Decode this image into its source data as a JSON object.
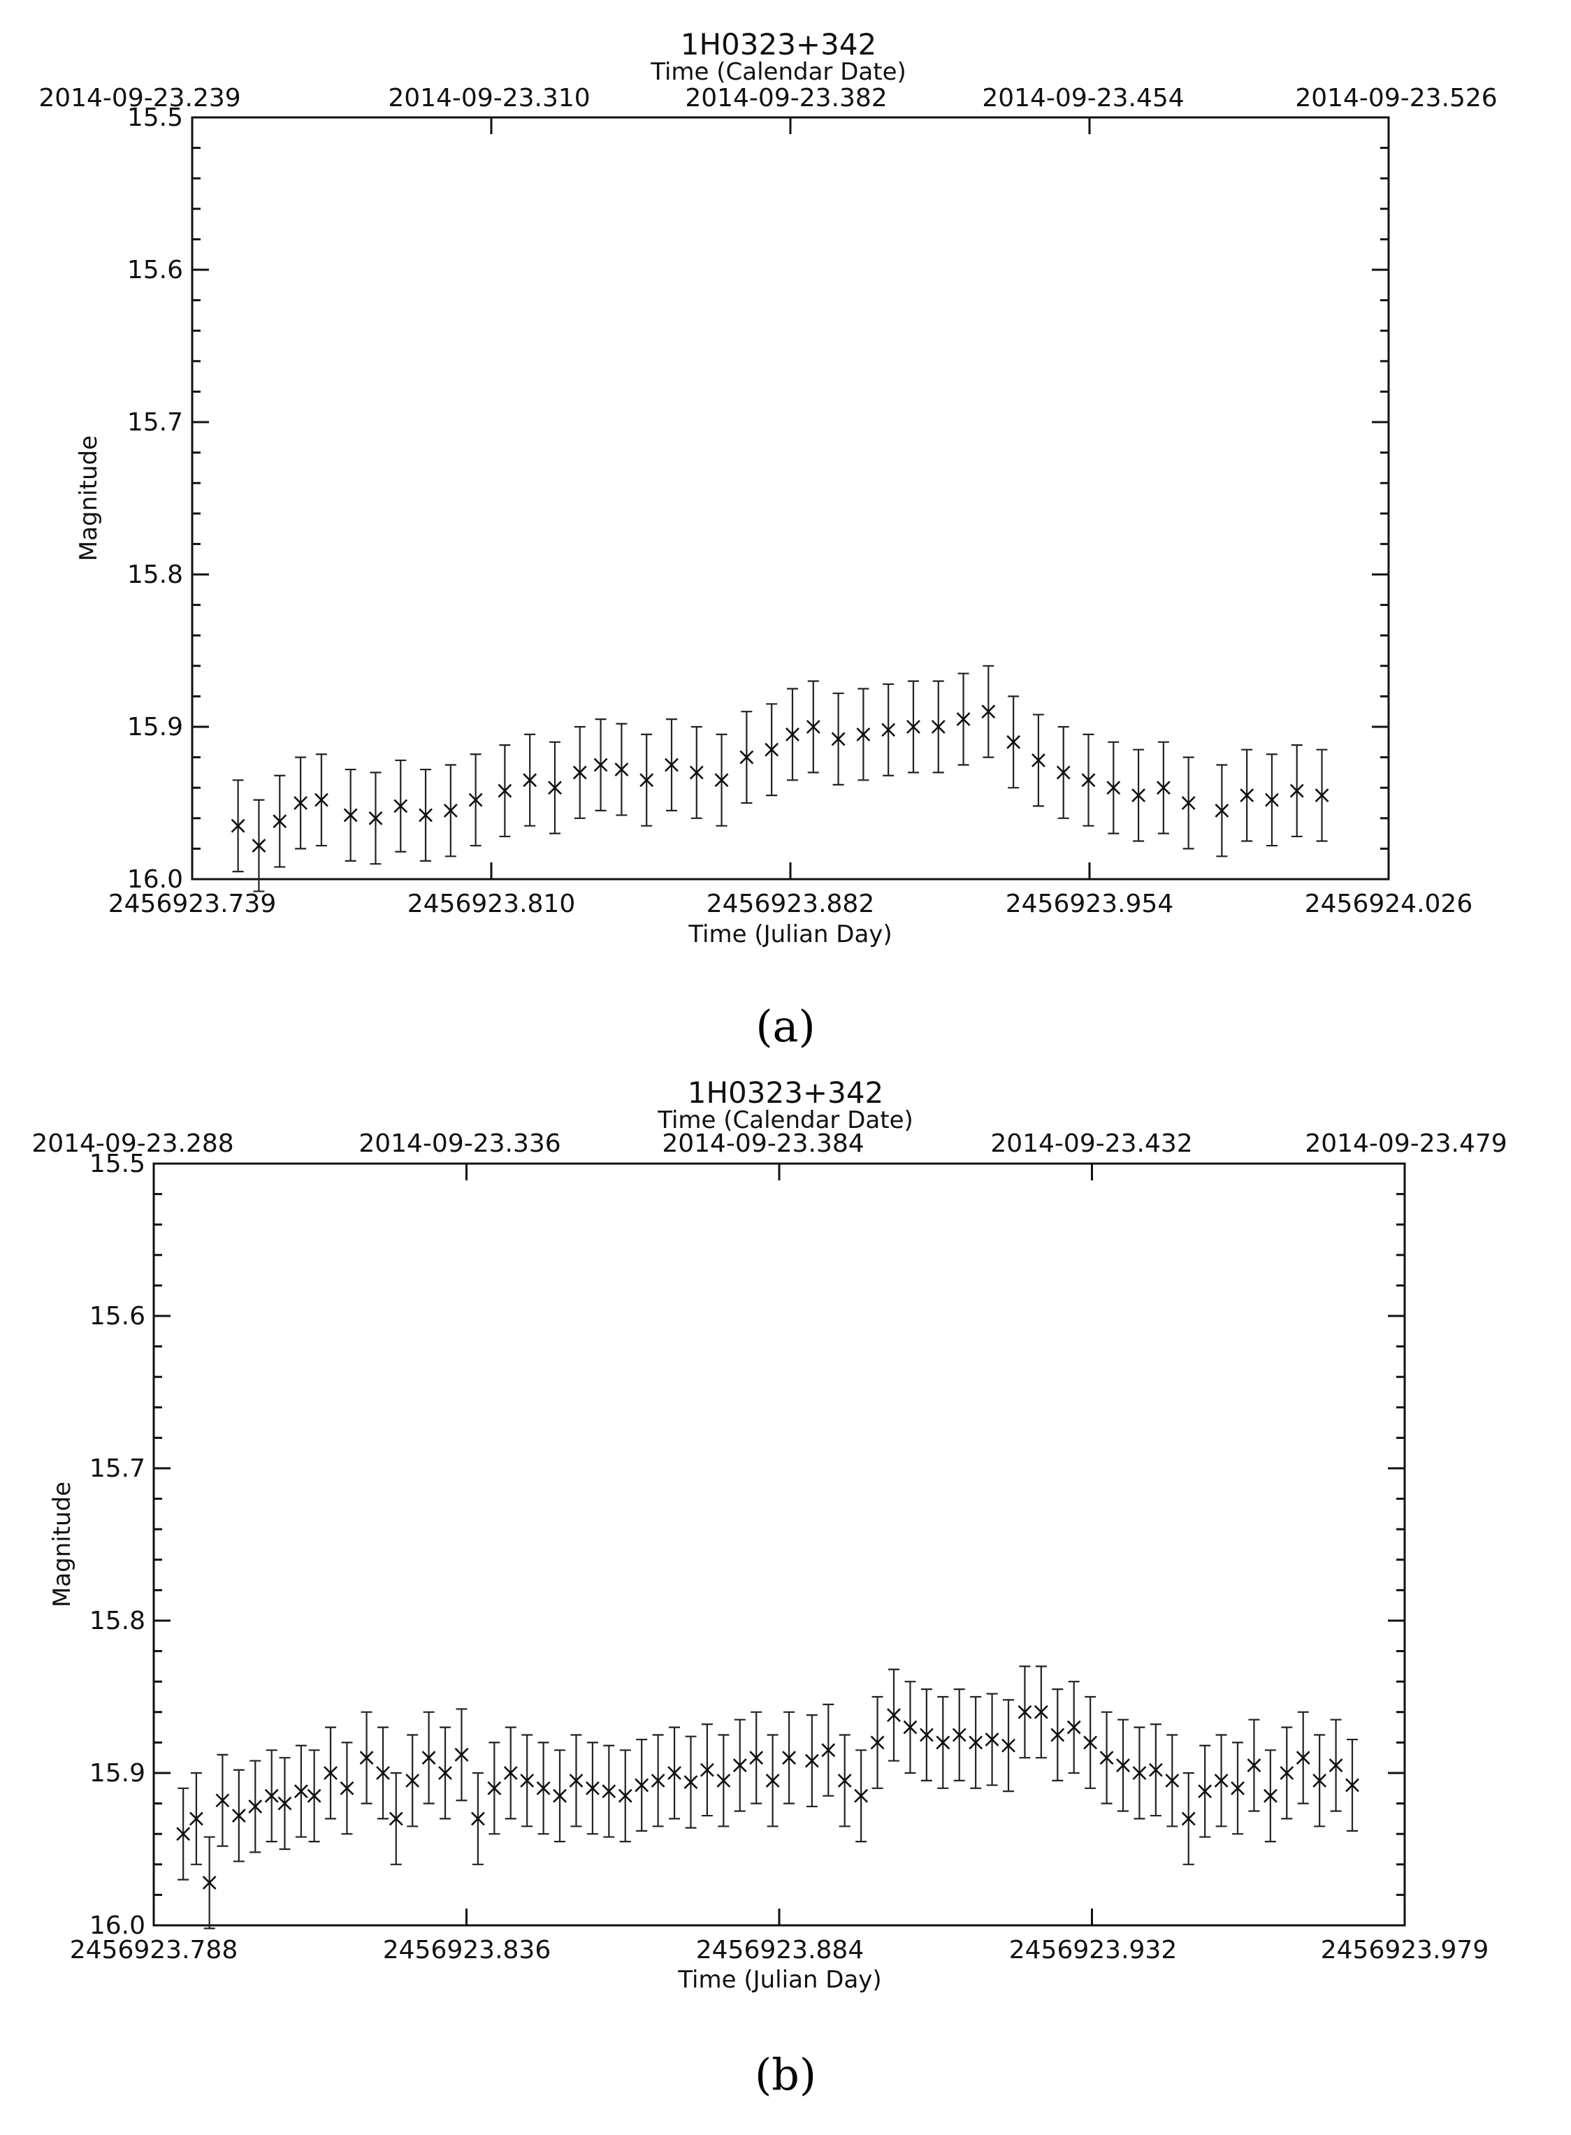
{
  "panels": [
    {
      "caption": "(a)",
      "title": "1H0323+342",
      "top_axis_label": "Time (Calendar Date)",
      "top_tick_labels": [
        "2014-09-23.239",
        "2014-09-23.310",
        "2014-09-23.382",
        "2014-09-23.454",
        "2014-09-23.526"
      ],
      "bottom_axis_label": "Time (Julian Day)",
      "bottom_tick_labels": [
        "2456923.739",
        "2456923.810",
        "2456923.882",
        "2456923.954",
        "2456924.026"
      ],
      "ylabel": "Magnitude",
      "y_tick_labels": [
        "15.5",
        "15.6",
        "15.7",
        "15.8",
        "15.9",
        "16.0"
      ]
    },
    {
      "caption": "(b)",
      "title": "1H0323+342",
      "top_axis_label": "Time (Calendar Date)",
      "top_tick_labels": [
        "2014-09-23.288",
        "2014-09-23.336",
        "2014-09-23.384",
        "2014-09-23.432",
        "2014-09-23.479"
      ],
      "bottom_axis_label": "Time (Julian Day)",
      "bottom_tick_labels": [
        "2456923.788",
        "2456923.836",
        "2456923.884",
        "2456923.932",
        "2456923.979"
      ],
      "ylabel": "Magnitude",
      "y_tick_labels": [
        "15.5",
        "15.6",
        "15.7",
        "15.8",
        "15.9",
        "16.0"
      ]
    }
  ],
  "chart_data": [
    {
      "type": "scatter",
      "title": "1H0323+342",
      "xlabel": "Time (Julian Day)",
      "x2label": "Time (Calendar Date)",
      "ylabel": "Magnitude",
      "xlim": [
        2456923.739,
        2456924.026
      ],
      "ylim": [
        15.5,
        16.0
      ],
      "y_inverted": true,
      "marker": "x",
      "error_bars": true,
      "x": [
        2456923.75,
        2456923.755,
        2456923.76,
        2456923.765,
        2456923.77,
        2456923.777,
        2456923.783,
        2456923.789,
        2456923.795,
        2456923.801,
        2456923.807,
        2456923.814,
        2456923.82,
        2456923.826,
        2456923.832,
        2456923.837,
        2456923.842,
        2456923.848,
        2456923.854,
        2456923.86,
        2456923.866,
        2456923.872,
        2456923.878,
        2456923.883,
        2456923.888,
        2456923.894,
        2456923.9,
        2456923.906,
        2456923.912,
        2456923.918,
        2456923.924,
        2456923.93,
        2456923.936,
        2456923.942,
        2456923.948,
        2456923.954,
        2456923.96,
        2456923.966,
        2456923.972,
        2456923.978,
        2456923.986,
        2456923.992,
        2456923.998,
        2456924.004,
        2456924.01
      ],
      "y": [
        15.965,
        15.978,
        15.962,
        15.95,
        15.948,
        15.958,
        15.96,
        15.952,
        15.958,
        15.955,
        15.948,
        15.942,
        15.935,
        15.94,
        15.93,
        15.925,
        15.928,
        15.935,
        15.925,
        15.93,
        15.935,
        15.92,
        15.915,
        15.905,
        15.9,
        15.908,
        15.905,
        15.902,
        15.9,
        15.9,
        15.895,
        15.89,
        15.91,
        15.922,
        15.93,
        15.935,
        15.94,
        15.945,
        15.94,
        15.95,
        15.955,
        15.945,
        15.948,
        15.942,
        15.945
      ],
      "yerr": [
        0.03,
        0.03,
        0.03,
        0.03,
        0.03,
        0.03,
        0.03,
        0.03,
        0.03,
        0.03,
        0.03,
        0.03,
        0.03,
        0.03,
        0.03,
        0.03,
        0.03,
        0.03,
        0.03,
        0.03,
        0.03,
        0.03,
        0.03,
        0.03,
        0.03,
        0.03,
        0.03,
        0.03,
        0.03,
        0.03,
        0.03,
        0.03,
        0.03,
        0.03,
        0.03,
        0.03,
        0.03,
        0.03,
        0.03,
        0.03,
        0.03,
        0.03,
        0.03,
        0.03,
        0.03
      ]
    },
    {
      "type": "scatter",
      "title": "1H0323+342",
      "xlabel": "Time (Julian Day)",
      "x2label": "Time (Calendar Date)",
      "ylabel": "Magnitude",
      "xlim": [
        2456923.788,
        2456923.979
      ],
      "ylim": [
        15.5,
        16.0
      ],
      "y_inverted": true,
      "marker": "x",
      "error_bars": true,
      "x": [
        2456923.7925,
        2456923.7945,
        2456923.7965,
        2456923.7985,
        2456923.801,
        2456923.8035,
        2456923.806,
        2456923.808,
        2456923.8105,
        2456923.8125,
        2456923.815,
        2456923.8175,
        2456923.8205,
        2456923.823,
        2456923.825,
        2456923.8275,
        2456923.83,
        2456923.8325,
        2456923.835,
        2456923.8375,
        2456923.84,
        2456923.8425,
        2456923.845,
        2456923.8475,
        2456923.85,
        2456923.8525,
        2456923.855,
        2456923.8575,
        2456923.86,
        2456923.8625,
        2456923.865,
        2456923.8675,
        2456923.87,
        2456923.8725,
        2456923.875,
        2456923.8775,
        2456923.88,
        2456923.8825,
        2456923.885,
        2456923.8885,
        2456923.891,
        2456923.8935,
        2456923.896,
        2456923.8985,
        2456923.901,
        2456923.9035,
        2456923.906,
        2456923.9085,
        2456923.911,
        2456923.9135,
        2456923.916,
        2456923.9185,
        2456923.921,
        2456923.9235,
        2456923.926,
        2456923.9285,
        2456923.931,
        2456923.9335,
        2456923.936,
        2456923.9385,
        2456923.941,
        2456923.9435,
        2456923.946,
        2456923.9485,
        2456923.951,
        2456923.9535,
        2456923.956,
        2456923.9585,
        2456923.961,
        2456923.9635,
        2456923.966,
        2456923.9685,
        2456923.971
      ],
      "y": [
        15.94,
        15.93,
        15.972,
        15.918,
        15.928,
        15.922,
        15.915,
        15.92,
        15.912,
        15.915,
        15.9,
        15.91,
        15.89,
        15.9,
        15.93,
        15.905,
        15.89,
        15.9,
        15.888,
        15.93,
        15.91,
        15.9,
        15.905,
        15.91,
        15.915,
        15.905,
        15.91,
        15.912,
        15.915,
        15.908,
        15.905,
        15.9,
        15.906,
        15.898,
        15.905,
        15.895,
        15.89,
        15.905,
        15.89,
        15.892,
        15.885,
        15.905,
        15.915,
        15.88,
        15.862,
        15.87,
        15.875,
        15.88,
        15.875,
        15.88,
        15.878,
        15.882,
        15.86,
        15.86,
        15.875,
        15.87,
        15.88,
        15.89,
        15.895,
        15.9,
        15.898,
        15.905,
        15.93,
        15.912,
        15.905,
        15.91,
        15.895,
        15.915,
        15.9,
        15.89,
        15.905,
        15.895,
        15.908
      ],
      "yerr": [
        0.03,
        0.03,
        0.03,
        0.03,
        0.03,
        0.03,
        0.03,
        0.03,
        0.03,
        0.03,
        0.03,
        0.03,
        0.03,
        0.03,
        0.03,
        0.03,
        0.03,
        0.03,
        0.03,
        0.03,
        0.03,
        0.03,
        0.03,
        0.03,
        0.03,
        0.03,
        0.03,
        0.03,
        0.03,
        0.03,
        0.03,
        0.03,
        0.03,
        0.03,
        0.03,
        0.03,
        0.03,
        0.03,
        0.03,
        0.03,
        0.03,
        0.03,
        0.03,
        0.03,
        0.03,
        0.03,
        0.03,
        0.03,
        0.03,
        0.03,
        0.03,
        0.03,
        0.03,
        0.03,
        0.03,
        0.03,
        0.03,
        0.03,
        0.03,
        0.03,
        0.03,
        0.03,
        0.03,
        0.03,
        0.03,
        0.03,
        0.03,
        0.03,
        0.03,
        0.03,
        0.03,
        0.03,
        0.03
      ]
    }
  ]
}
